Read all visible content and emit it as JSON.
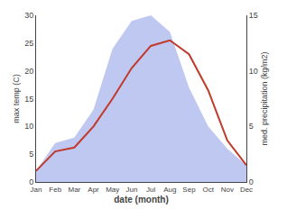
{
  "chart_data": {
    "type": "line",
    "categories": [
      "Jan",
      "Feb",
      "Mar",
      "Apr",
      "May",
      "Jun",
      "Jul",
      "Aug",
      "Sep",
      "Oct",
      "Nov",
      "Dec"
    ],
    "xlabel": "date (month)",
    "ylabel": "max temp (C)",
    "y2label": "med. precipitation (kg/m2)",
    "series": [
      {
        "type": "area",
        "axis": "y2",
        "color": "#bfc8f0",
        "values": [
          1.0,
          3.5,
          4.0,
          6.5,
          12.0,
          14.5,
          15.0,
          13.5,
          8.5,
          5.0,
          3.0,
          1.5
        ]
      },
      {
        "type": "line",
        "color": "#c0392b",
        "values": [
          2.0,
          5.5,
          6.2,
          10.0,
          15.0,
          20.5,
          24.5,
          25.5,
          23.0,
          16.5,
          7.5,
          3.0
        ]
      }
    ],
    "ylim": [
      0,
      30
    ],
    "yticks": [
      0,
      5,
      10,
      15,
      20,
      25,
      30
    ],
    "y2lim": [
      0,
      15
    ],
    "y2ticks": [
      0,
      5,
      10,
      15
    ],
    "grid": false
  }
}
